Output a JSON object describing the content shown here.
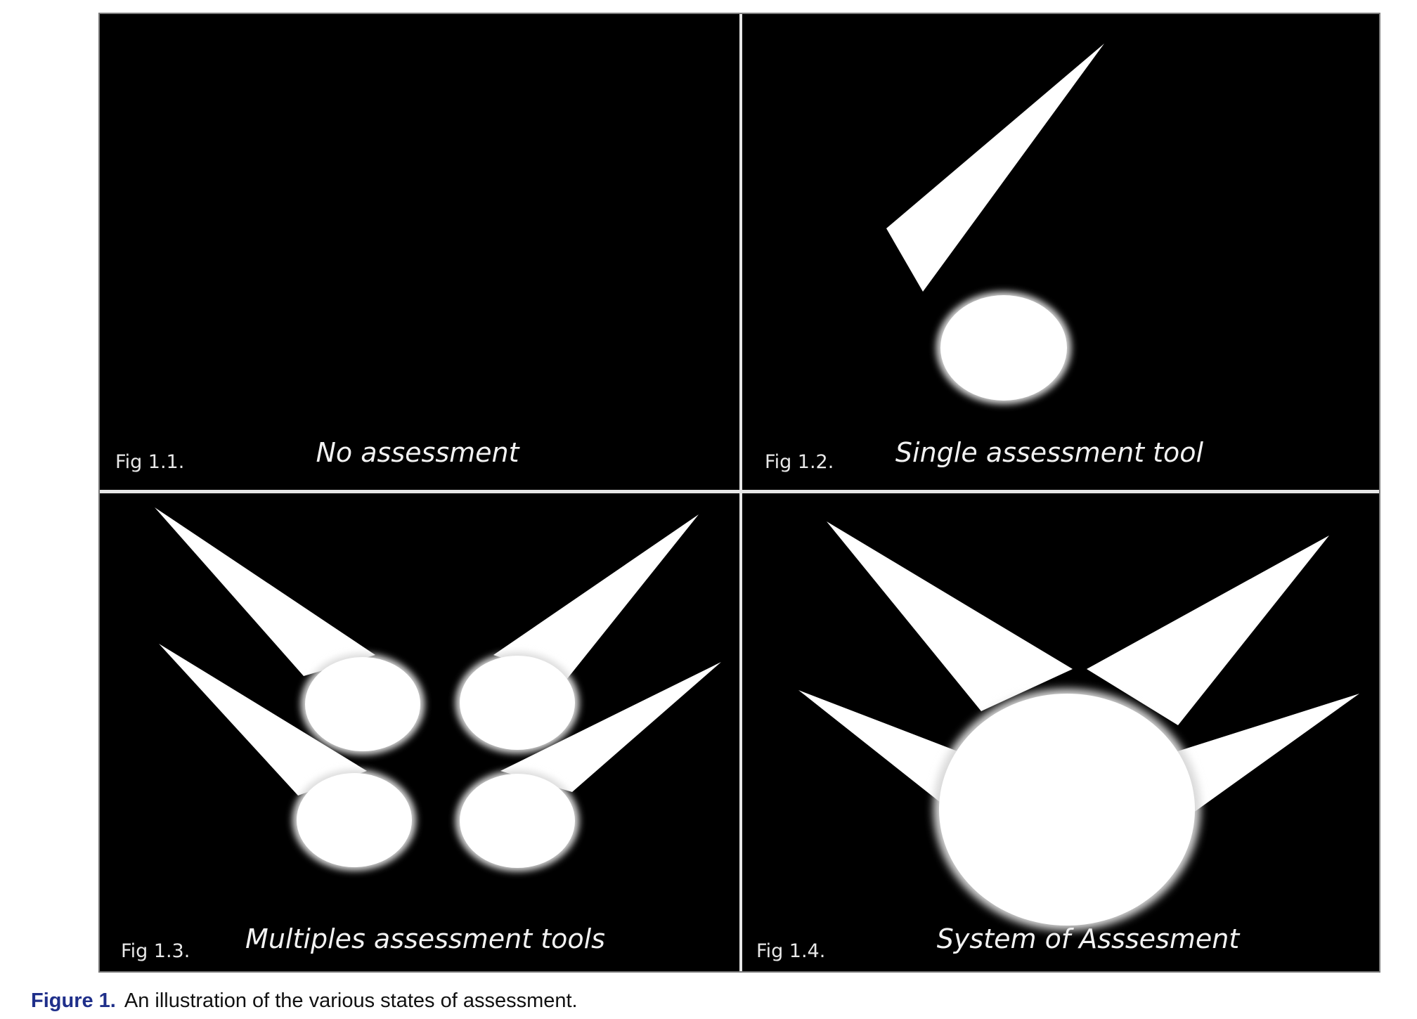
{
  "panels": [
    {
      "fig_label": "Fig 1.1.",
      "title": "No assessment"
    },
    {
      "fig_label": "Fig 1.2.",
      "title": "Single assessment tool"
    },
    {
      "fig_label": "Fig 1.3.",
      "title": "Multiples assessment tools"
    },
    {
      "fig_label": "Fig 1.4.",
      "title": "System of Asssesment"
    }
  ],
  "caption": {
    "label": "Figure 1.",
    "text": "An illustration of the various states of assessment."
  },
  "colors": {
    "background": "#000000",
    "shape": "#ffffff",
    "caption_label": "#1f2f8a"
  }
}
